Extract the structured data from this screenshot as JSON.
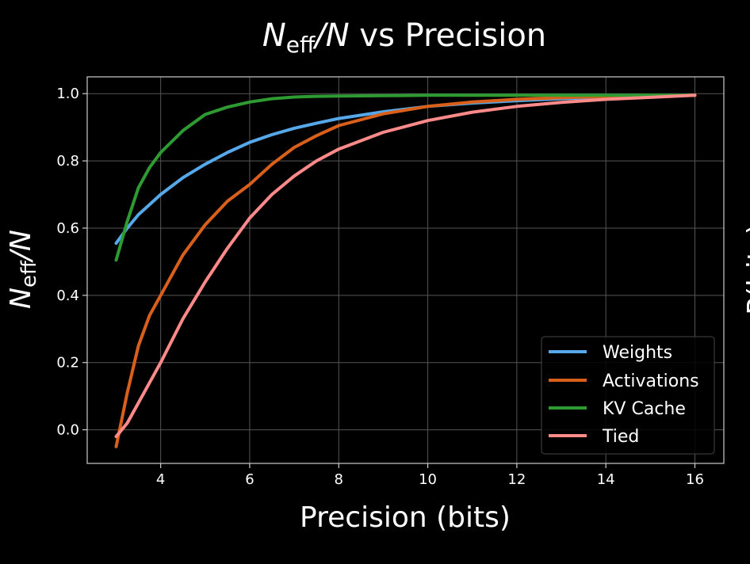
{
  "chart_data": {
    "type": "line",
    "title": {
      "main": "N",
      "sub": "eff",
      "rest": "/N",
      "suffix": " vs Precision"
    },
    "xlabel": "Precision (bits)",
    "ylabel": {
      "main": "N",
      "sub": "eff",
      "rest": "/N"
    },
    "right_label": "P(bits)",
    "xlim": [
      2.35,
      16.65
    ],
    "ylim": [
      -0.1,
      1.05
    ],
    "xticks": [
      4,
      6,
      8,
      10,
      12,
      14,
      16
    ],
    "yticks": [
      0.0,
      0.2,
      0.4,
      0.6,
      0.8,
      1.0
    ],
    "yticklabels": [
      "0.0",
      "0.2",
      "0.4",
      "0.6",
      "0.8",
      "1.0"
    ],
    "grid": true,
    "legend_position": "lower-right",
    "colors": {
      "background": "#000000",
      "grid": "#555555",
      "axes": "#cccccc",
      "text": "#ffffff"
    },
    "x": [
      3,
      3.25,
      3.5,
      3.75,
      4,
      4.5,
      5,
      5.5,
      6,
      6.5,
      7,
      7.5,
      8,
      9,
      10,
      11,
      12,
      13,
      14,
      15,
      16
    ],
    "series": [
      {
        "name": "Weights",
        "color": "#56a8e8",
        "values": [
          0.555,
          0.6,
          0.64,
          0.67,
          0.7,
          0.75,
          0.79,
          0.825,
          0.855,
          0.878,
          0.897,
          0.912,
          0.926,
          0.946,
          0.962,
          0.972,
          0.979,
          0.985,
          0.989,
          0.992,
          0.995
        ]
      },
      {
        "name": "Activations",
        "color": "#d9601a",
        "values": [
          -0.05,
          0.11,
          0.25,
          0.34,
          0.4,
          0.52,
          0.61,
          0.68,
          0.73,
          0.79,
          0.84,
          0.875,
          0.905,
          0.94,
          0.962,
          0.975,
          0.983,
          0.988,
          0.991,
          0.993,
          0.995
        ]
      },
      {
        "name": "KV Cache",
        "color": "#2e9a32",
        "values": [
          0.505,
          0.62,
          0.72,
          0.78,
          0.825,
          0.89,
          0.938,
          0.96,
          0.975,
          0.985,
          0.99,
          0.992,
          0.993,
          0.994,
          0.995,
          0.995,
          0.995,
          0.995,
          0.995,
          0.995,
          0.995
        ]
      },
      {
        "name": "Tied",
        "color": "#ff8a8a",
        "values": [
          -0.02,
          0.02,
          0.08,
          0.14,
          0.2,
          0.33,
          0.44,
          0.54,
          0.63,
          0.7,
          0.755,
          0.8,
          0.835,
          0.885,
          0.92,
          0.945,
          0.962,
          0.974,
          0.983,
          0.989,
          0.995
        ]
      }
    ]
  }
}
